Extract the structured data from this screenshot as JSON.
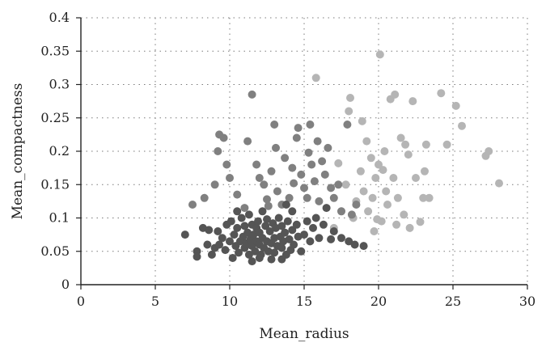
{
  "chart_data": {
    "type": "scatter",
    "xlabel": "Mean_radius",
    "ylabel": "Mean_compactness",
    "xlim": [
      0,
      30
    ],
    "ylim": [
      0,
      0.4
    ],
    "x_ticks": [
      0,
      5,
      10,
      15,
      20,
      25,
      30
    ],
    "x_tick_labels": [
      "0",
      "5",
      "10",
      "15",
      "20",
      "25",
      "30"
    ],
    "y_ticks": [
      0,
      0.05,
      0.1,
      0.15,
      0.2,
      0.25,
      0.3,
      0.35,
      0.4
    ],
    "y_tick_labels": [
      "0",
      "0.05",
      "0.1",
      "0.15",
      "0.2",
      "0.25",
      "0.3",
      "0.35",
      "0.4"
    ],
    "grid": true,
    "legend": "none",
    "series": [
      {
        "color": "#555555",
        "points": [
          [
            7.0,
            0.075
          ],
          [
            7.8,
            0.05
          ],
          [
            7.8,
            0.042
          ],
          [
            8.2,
            0.085
          ],
          [
            8.5,
            0.06
          ],
          [
            8.6,
            0.082
          ],
          [
            8.8,
            0.045
          ],
          [
            9.0,
            0.055
          ],
          [
            9.2,
            0.08
          ],
          [
            9.3,
            0.06
          ],
          [
            9.5,
            0.07
          ],
          [
            9.7,
            0.052
          ],
          [
            9.8,
            0.09
          ],
          [
            10.0,
            0.065
          ],
          [
            10.1,
            0.095
          ],
          [
            10.2,
            0.04
          ],
          [
            10.3,
            0.075
          ],
          [
            10.4,
            0.058
          ],
          [
            10.5,
            0.085
          ],
          [
            10.6,
            0.048
          ],
          [
            10.7,
            0.065
          ],
          [
            10.8,
            0.1
          ],
          [
            10.9,
            0.072
          ],
          [
            11.0,
            0.055
          ],
          [
            11.0,
            0.088
          ],
          [
            11.1,
            0.062
          ],
          [
            11.2,
            0.078
          ],
          [
            11.3,
            0.045
          ],
          [
            11.3,
            0.105
          ],
          [
            11.4,
            0.068
          ],
          [
            11.5,
            0.058
          ],
          [
            11.5,
            0.09
          ],
          [
            11.6,
            0.075
          ],
          [
            11.7,
            0.05
          ],
          [
            11.8,
            0.085
          ],
          [
            11.8,
            0.065
          ],
          [
            11.9,
            0.095
          ],
          [
            12.0,
            0.06
          ],
          [
            12.0,
            0.078
          ],
          [
            12.1,
            0.045
          ],
          [
            12.2,
            0.11
          ],
          [
            12.2,
            0.07
          ],
          [
            12.3,
            0.055
          ],
          [
            12.4,
            0.088
          ],
          [
            12.5,
            0.065
          ],
          [
            12.5,
            0.098
          ],
          [
            12.6,
            0.05
          ],
          [
            12.7,
            0.08
          ],
          [
            12.8,
            0.062
          ],
          [
            12.9,
            0.092
          ],
          [
            13.0,
            0.07
          ],
          [
            13.0,
            0.048
          ],
          [
            13.1,
            0.085
          ],
          [
            13.2,
            0.058
          ],
          [
            13.3,
            0.1
          ],
          [
            13.4,
            0.072
          ],
          [
            13.5,
            0.055
          ],
          [
            13.5,
            0.088
          ],
          [
            13.6,
            0.065
          ],
          [
            13.7,
            0.078
          ],
          [
            13.8,
            0.045
          ],
          [
            13.9,
            0.095
          ],
          [
            14.0,
            0.068
          ],
          [
            14.1,
            0.052
          ],
          [
            14.2,
            0.082
          ],
          [
            14.3,
            0.06
          ],
          [
            14.5,
            0.09
          ],
          [
            14.6,
            0.072
          ],
          [
            14.8,
            0.05
          ],
          [
            15.0,
            0.075
          ],
          [
            15.2,
            0.095
          ],
          [
            15.4,
            0.065
          ],
          [
            15.6,
            0.085
          ],
          [
            16.0,
            0.07
          ],
          [
            16.3,
            0.09
          ],
          [
            16.8,
            0.068
          ],
          [
            17.0,
            0.08
          ],
          [
            17.5,
            0.07
          ],
          [
            18.0,
            0.065
          ],
          [
            18.4,
            0.06
          ],
          [
            19.0,
            0.058
          ],
          [
            12.0,
            0.04
          ],
          [
            12.8,
            0.038
          ],
          [
            11.5,
            0.035
          ],
          [
            13.5,
            0.038
          ],
          [
            10.5,
            0.11
          ],
          [
            14.2,
            0.11
          ],
          [
            13.8,
            0.12
          ],
          [
            15.8,
            0.1
          ],
          [
            16.5,
            0.115
          ]
        ]
      },
      {
        "color": "#808080",
        "points": [
          [
            7.5,
            0.12
          ],
          [
            8.3,
            0.13
          ],
          [
            9.0,
            0.15
          ],
          [
            9.2,
            0.2
          ],
          [
            9.3,
            0.225
          ],
          [
            9.6,
            0.22
          ],
          [
            9.8,
            0.18
          ],
          [
            10.0,
            0.16
          ],
          [
            10.5,
            0.135
          ],
          [
            11.0,
            0.115
          ],
          [
            11.2,
            0.215
          ],
          [
            11.5,
            0.285
          ],
          [
            11.8,
            0.18
          ],
          [
            12.0,
            0.16
          ],
          [
            12.3,
            0.15
          ],
          [
            12.5,
            0.128
          ],
          [
            12.8,
            0.17
          ],
          [
            13.0,
            0.24
          ],
          [
            13.2,
            0.14
          ],
          [
            13.5,
            0.12
          ],
          [
            13.7,
            0.19
          ],
          [
            14.0,
            0.13
          ],
          [
            14.2,
            0.175
          ],
          [
            14.5,
            0.22
          ],
          [
            14.6,
            0.235
          ],
          [
            14.8,
            0.165
          ],
          [
            15.0,
            0.145
          ],
          [
            15.2,
            0.13
          ],
          [
            15.4,
            0.24
          ],
          [
            15.5,
            0.18
          ],
          [
            15.7,
            0.155
          ],
          [
            15.9,
            0.215
          ],
          [
            16.0,
            0.125
          ],
          [
            16.2,
            0.185
          ],
          [
            16.4,
            0.165
          ],
          [
            16.8,
            0.145
          ],
          [
            17.0,
            0.13
          ],
          [
            17.3,
            0.15
          ],
          [
            17.5,
            0.11
          ],
          [
            17.9,
            0.24
          ],
          [
            18.2,
            0.105
          ],
          [
            18.5,
            0.12
          ],
          [
            16.6,
            0.205
          ],
          [
            14.3,
            0.152
          ],
          [
            13.1,
            0.205
          ],
          [
            12.6,
            0.118
          ],
          [
            15.3,
            0.198
          ]
        ]
      },
      {
        "color": "#b5b5b5",
        "points": [
          [
            15.8,
            0.31
          ],
          [
            17.0,
            0.085
          ],
          [
            17.5,
            0.11
          ],
          [
            17.8,
            0.15
          ],
          [
            18.0,
            0.26
          ],
          [
            18.1,
            0.28
          ],
          [
            18.3,
            0.1
          ],
          [
            18.5,
            0.125
          ],
          [
            18.8,
            0.17
          ],
          [
            19.0,
            0.14
          ],
          [
            19.2,
            0.215
          ],
          [
            19.3,
            0.11
          ],
          [
            19.5,
            0.19
          ],
          [
            19.6,
            0.13
          ],
          [
            19.7,
            0.08
          ],
          [
            19.8,
            0.16
          ],
          [
            20.0,
            0.18
          ],
          [
            20.1,
            0.345
          ],
          [
            20.2,
            0.095
          ],
          [
            20.4,
            0.2
          ],
          [
            20.5,
            0.14
          ],
          [
            20.6,
            0.12
          ],
          [
            20.8,
            0.278
          ],
          [
            21.0,
            0.16
          ],
          [
            21.1,
            0.285
          ],
          [
            21.2,
            0.09
          ],
          [
            21.3,
            0.13
          ],
          [
            21.5,
            0.22
          ],
          [
            21.7,
            0.105
          ],
          [
            21.8,
            0.21
          ],
          [
            22.0,
            0.195
          ],
          [
            22.1,
            0.085
          ],
          [
            22.3,
            0.275
          ],
          [
            22.5,
            0.16
          ],
          [
            23.0,
            0.13
          ],
          [
            23.1,
            0.17
          ],
          [
            23.2,
            0.21
          ],
          [
            23.4,
            0.13
          ],
          [
            24.2,
            0.287
          ],
          [
            24.6,
            0.21
          ],
          [
            25.2,
            0.268
          ],
          [
            25.6,
            0.238
          ],
          [
            27.2,
            0.193
          ],
          [
            27.4,
            0.2
          ],
          [
            28.1,
            0.152
          ],
          [
            17.3,
            0.182
          ],
          [
            18.9,
            0.245
          ],
          [
            19.9,
            0.098
          ],
          [
            20.3,
            0.172
          ],
          [
            22.8,
            0.094
          ]
        ]
      }
    ]
  }
}
